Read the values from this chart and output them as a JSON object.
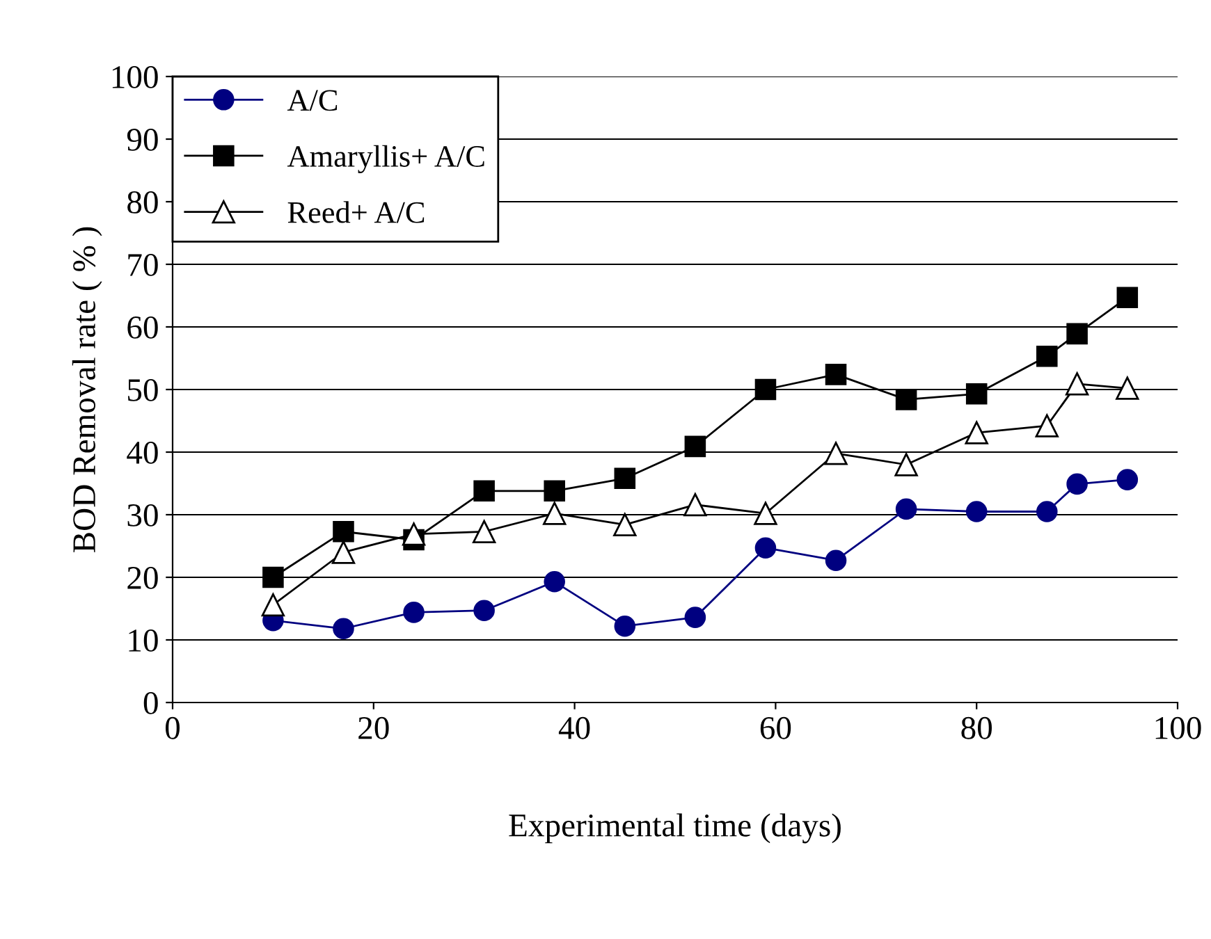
{
  "chart_data": {
    "type": "line",
    "xlabel": "Experimental time (days)",
    "ylabel": "BOD Removal rate ( % )",
    "x": [
      10,
      17,
      24,
      31,
      38,
      45,
      52,
      59,
      66,
      73,
      80,
      87,
      90,
      95
    ],
    "series": [
      {
        "name": "A/C",
        "color": "#000080",
        "marker": "circle",
        "values": [
          13.1,
          11.8,
          14.4,
          14.7,
          19.3,
          12.2,
          13.6,
          24.7,
          22.7,
          30.9,
          30.5,
          30.5,
          34.9,
          35.6
        ]
      },
      {
        "name": "Amaryllis+ A/C",
        "color": "#000000",
        "marker": "square",
        "values": [
          20.0,
          27.3,
          26.0,
          33.8,
          33.8,
          35.8,
          40.9,
          50.0,
          52.4,
          48.4,
          49.3,
          55.3,
          58.9,
          64.7
        ]
      },
      {
        "name": "Reed+ A/C",
        "color": "#000000",
        "marker": "triangle",
        "values": [
          15.6,
          24.0,
          26.9,
          27.3,
          30.2,
          28.4,
          31.6,
          30.2,
          39.8,
          38.0,
          43.1,
          44.2,
          50.9,
          50.2
        ]
      }
    ],
    "xlim": [
      0,
      100
    ],
    "xticks": [
      0,
      20,
      40,
      60,
      80,
      100
    ],
    "ylim": [
      0,
      100
    ],
    "yticks": [
      0,
      10,
      20,
      30,
      40,
      50,
      60,
      70,
      80,
      90,
      100
    ],
    "grid": "y",
    "legend": "top left"
  }
}
